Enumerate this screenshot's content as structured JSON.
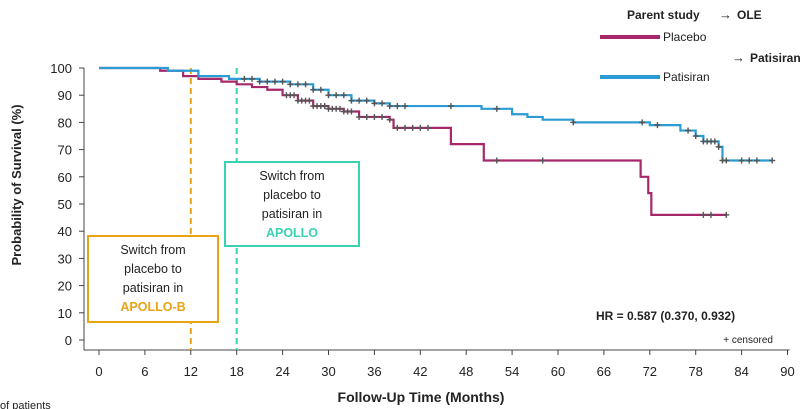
{
  "chart_data": {
    "type": "line",
    "xlabel": "Follow-Up Time (Months)",
    "ylabel": "Probability of Survival (%)",
    "xlim": [
      0,
      90
    ],
    "ylim": [
      0,
      100
    ],
    "x_ticks": [
      0,
      6,
      12,
      18,
      24,
      30,
      36,
      42,
      48,
      54,
      60,
      66,
      72,
      78,
      84,
      90
    ],
    "y_ticks": [
      0,
      10,
      20,
      30,
      40,
      50,
      60,
      70,
      80,
      90,
      100
    ],
    "grid": false,
    "legend": {
      "position": "top-right",
      "heading": "Parent study",
      "ole_label": "OLE",
      "ole_patisiran_label": "Patisiran"
    },
    "series": [
      {
        "name": "Placebo",
        "color": "#a7286a",
        "points": [
          [
            0,
            100
          ],
          [
            5,
            100
          ],
          [
            8,
            99
          ],
          [
            11,
            97
          ],
          [
            13,
            96
          ],
          [
            16,
            95
          ],
          [
            18,
            94
          ],
          [
            20,
            93
          ],
          [
            22,
            92
          ],
          [
            24,
            90
          ],
          [
            26,
            88
          ],
          [
            28,
            86
          ],
          [
            30,
            85
          ],
          [
            32,
            84
          ],
          [
            34,
            82
          ],
          [
            38,
            81
          ],
          [
            38.5,
            78
          ],
          [
            44,
            78
          ],
          [
            46,
            72
          ],
          [
            50,
            72
          ],
          [
            50.3,
            66
          ],
          [
            70.5,
            66
          ],
          [
            70.8,
            60
          ],
          [
            71.5,
            60
          ],
          [
            71.8,
            54
          ],
          [
            72,
            54
          ],
          [
            72.2,
            46
          ],
          [
            82,
            46
          ]
        ],
        "censor_x": [
          24.5,
          25,
          25.5,
          26,
          26.5,
          27,
          27.5,
          28,
          28.5,
          29,
          29.5,
          30,
          30.5,
          31,
          31.5,
          32,
          32.5,
          33,
          34,
          35,
          36,
          37,
          38,
          39,
          40,
          41,
          42,
          43,
          52,
          58,
          79,
          80,
          82
        ]
      },
      {
        "name": "Patisiran",
        "color": "#2b9bd4",
        "points": [
          [
            0,
            100
          ],
          [
            6,
            100
          ],
          [
            9,
            99
          ],
          [
            13,
            97
          ],
          [
            17,
            96
          ],
          [
            21,
            95
          ],
          [
            25,
            94
          ],
          [
            28,
            92
          ],
          [
            30,
            90
          ],
          [
            33,
            88
          ],
          [
            36,
            87
          ],
          [
            38,
            86
          ],
          [
            46,
            86
          ],
          [
            50,
            85
          ],
          [
            54,
            83
          ],
          [
            56,
            82
          ],
          [
            58,
            81
          ],
          [
            62,
            80
          ],
          [
            70,
            80
          ],
          [
            72,
            79
          ],
          [
            76,
            77
          ],
          [
            78,
            75
          ],
          [
            79,
            73
          ],
          [
            81,
            71
          ],
          [
            81.5,
            66
          ],
          [
            88,
            66
          ]
        ],
        "censor_x": [
          19,
          20,
          21,
          22,
          23,
          24,
          25,
          26,
          27,
          28,
          29,
          30,
          31,
          32,
          33,
          34,
          35,
          36,
          37,
          38,
          39,
          40,
          46,
          52,
          62,
          71,
          73,
          77,
          78,
          79,
          79.5,
          80,
          80.5,
          81,
          81.5,
          82,
          84,
          85,
          86,
          88
        ]
      }
    ],
    "annotations": {
      "apollo_b": {
        "x": 12,
        "color": "#e8a317",
        "text_lines": [
          "Switch from",
          "placebo to",
          "patisiran in"
        ],
        "highlight": "APOLLO-B"
      },
      "apollo": {
        "x": 18,
        "color": "#3bd1b5",
        "text_lines": [
          "Switch from",
          "placebo to",
          "patisiran in"
        ],
        "highlight": "APOLLO"
      },
      "hr": "HR = 0.587 (0.370, 0.932)",
      "censored_note": "+ censored",
      "footnote": "of patients"
    }
  }
}
